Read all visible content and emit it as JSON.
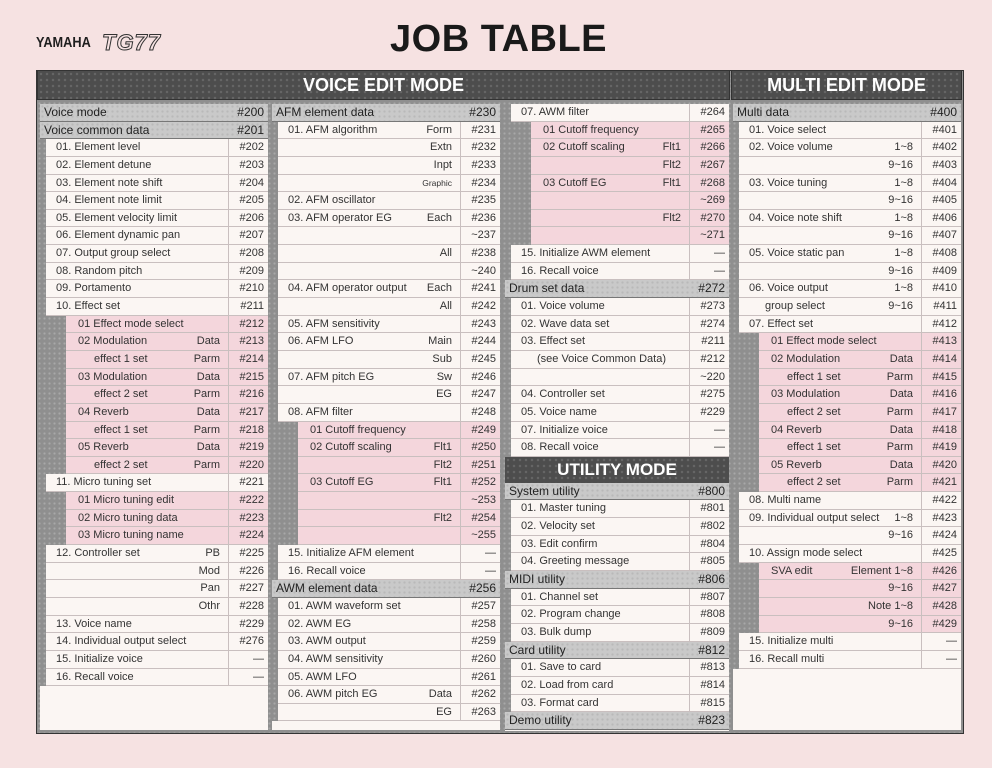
{
  "header": {
    "brand": "YAMAHA",
    "model": "TG77",
    "title": "JOB TABLE"
  },
  "banners": {
    "voice_edit": "VOICE EDIT MODE",
    "multi_edit": "MULTI EDIT MODE",
    "utility": "UTILITY MODE"
  },
  "colors": {
    "frame": "#4d4d4d",
    "header_row": "#c9c9c9",
    "row": "#fbf6f3",
    "sub_row": "#f4d6dc",
    "page": "#f6e2e2"
  },
  "columns": [
    {
      "rows": [
        {
          "t": "Voice mode",
          "c": "#200",
          "k": "hdr"
        },
        {
          "t": "Voice common data",
          "c": "#201",
          "k": "hdr"
        },
        {
          "t": "01. Element level",
          "c": "#202",
          "l": 1
        },
        {
          "t": "02. Element detune",
          "c": "#203",
          "l": 1
        },
        {
          "t": "03. Element note shift",
          "c": "#204",
          "l": 1
        },
        {
          "t": "04. Element note limit",
          "c": "#205",
          "l": 1
        },
        {
          "t": "05. Element velocity limit",
          "c": "#206",
          "l": 1
        },
        {
          "t": "06. Element dynamic pan",
          "c": "#207",
          "l": 1
        },
        {
          "t": "07. Output group select",
          "c": "#208",
          "l": 1
        },
        {
          "t": "08. Random pitch",
          "c": "#209",
          "l": 1
        },
        {
          "t": "09. Portamento",
          "c": "#210",
          "l": 1
        },
        {
          "t": "10. Effect set",
          "c": "#211",
          "l": 1
        },
        {
          "t": "01  Effect mode select",
          "c": "#212",
          "l": 2,
          "k": "pink"
        },
        {
          "t": "02  Modulation",
          "s": "Data",
          "c": "#213",
          "l": 2,
          "k": "pink"
        },
        {
          "t": "effect 1 set",
          "s": "Parm",
          "c": "#214",
          "l": 3,
          "k": "pink"
        },
        {
          "t": "03  Modulation",
          "s": "Data",
          "c": "#215",
          "l": 2,
          "k": "pink"
        },
        {
          "t": "effect 2 set",
          "s": "Parm",
          "c": "#216",
          "l": 3,
          "k": "pink"
        },
        {
          "t": "04  Reverb",
          "s": "Data",
          "c": "#217",
          "l": 2,
          "k": "pink"
        },
        {
          "t": "effect 1 set",
          "s": "Parm",
          "c": "#218",
          "l": 3,
          "k": "pink"
        },
        {
          "t": "05  Reverb",
          "s": "Data",
          "c": "#219",
          "l": 2,
          "k": "pink"
        },
        {
          "t": "effect 2 set",
          "s": "Parm",
          "c": "#220",
          "l": 3,
          "k": "pink"
        },
        {
          "t": "11. Micro tuning set",
          "c": "#221",
          "l": 1
        },
        {
          "t": "01  Micro tuning edit",
          "c": "#222",
          "l": 2,
          "k": "pink"
        },
        {
          "t": "02  Micro tuning data",
          "c": "#223",
          "l": 2,
          "k": "pink"
        },
        {
          "t": "03  Micro tuning name",
          "c": "#224",
          "l": 2,
          "k": "pink"
        },
        {
          "t": "12. Controller set",
          "s": "PB",
          "c": "#225",
          "l": 1
        },
        {
          "t": "",
          "s": "Mod",
          "c": "#226",
          "l": 1
        },
        {
          "t": "",
          "s": "Pan",
          "c": "#227",
          "l": 1
        },
        {
          "t": "",
          "s": "Othr",
          "c": "#228",
          "l": 1
        },
        {
          "t": "13. Voice name",
          "c": "#229",
          "l": 1
        },
        {
          "t": "14. Individual output select",
          "c": "#276",
          "l": 1
        },
        {
          "t": "15. Initialize voice",
          "c": "—",
          "l": 1
        },
        {
          "t": "16. Recall voice",
          "c": "—",
          "l": 1
        }
      ]
    },
    {
      "rows": [
        {
          "t": "AFM element data",
          "c": "#230",
          "k": "hdr"
        },
        {
          "t": "01. AFM algorithm",
          "s": "Form",
          "c": "#231",
          "l": 1
        },
        {
          "t": "",
          "s": "Extn",
          "c": "#232",
          "l": 1
        },
        {
          "t": "",
          "s": "Inpt",
          "c": "#233",
          "l": 1
        },
        {
          "t": "",
          "s": "Graphic",
          "c": "#234",
          "l": 1,
          "k": "tiny"
        },
        {
          "t": "02. AFM oscillator",
          "c": "#235",
          "l": 1
        },
        {
          "t": "03. AFM operator EG",
          "s": "Each",
          "c": "#236",
          "l": 1
        },
        {
          "t": "",
          "s": "",
          "c": "~237",
          "l": 1
        },
        {
          "t": "",
          "s": "All",
          "c": "#238",
          "l": 1
        },
        {
          "t": "",
          "s": "",
          "c": "~240",
          "l": 1
        },
        {
          "t": "04. AFM operator output",
          "s": "Each",
          "c": "#241",
          "l": 1
        },
        {
          "t": "",
          "s": "All",
          "c": "#242",
          "l": 1
        },
        {
          "t": "05. AFM sensitivity",
          "c": "#243",
          "l": 1
        },
        {
          "t": "06. AFM LFO",
          "s": "Main",
          "c": "#244",
          "l": 1
        },
        {
          "t": "",
          "s": "Sub",
          "c": "#245",
          "l": 1
        },
        {
          "t": "07. AFM pitch EG",
          "s": "Sw",
          "c": "#246",
          "l": 1
        },
        {
          "t": "",
          "s": "EG",
          "c": "#247",
          "l": 1
        },
        {
          "t": "08. AFM filter",
          "c": "#248",
          "l": 1
        },
        {
          "t": "01  Cutoff frequency",
          "c": "#249",
          "l": 2,
          "k": "pink"
        },
        {
          "t": "02  Cutoff scaling",
          "s": "Flt1",
          "c": "#250",
          "l": 2,
          "k": "pink"
        },
        {
          "t": "",
          "s": "Flt2",
          "c": "#251",
          "l": 2,
          "k": "pink"
        },
        {
          "t": "03  Cutoff EG",
          "s": "Flt1",
          "c": "#252",
          "l": 2,
          "k": "pink"
        },
        {
          "t": "",
          "s": "",
          "c": "~253",
          "l": 2,
          "k": "pink"
        },
        {
          "t": "",
          "s": "Flt2",
          "c": "#254",
          "l": 2,
          "k": "pink"
        },
        {
          "t": "",
          "s": "",
          "c": "~255",
          "l": 2,
          "k": "pink"
        },
        {
          "t": "15. Initialize AFM element",
          "c": "—",
          "l": 1
        },
        {
          "t": "16. Recall voice",
          "c": "—",
          "l": 1
        },
        {
          "t": "AWM element data",
          "c": "#256",
          "k": "hdr"
        },
        {
          "t": "01. AWM waveform set",
          "c": "#257",
          "l": 1
        },
        {
          "t": "02. AWM EG",
          "c": "#258",
          "l": 1
        },
        {
          "t": "03. AWM output",
          "c": "#259",
          "l": 1
        },
        {
          "t": "04. AWM sensitivity",
          "c": "#260",
          "l": 1
        },
        {
          "t": "05. AWM LFO",
          "c": "#261",
          "l": 1
        },
        {
          "t": "06. AWM pitch EG",
          "s": "Data",
          "c": "#262",
          "l": 1
        },
        {
          "t": "",
          "s": "EG",
          "c": "#263",
          "l": 1
        }
      ]
    },
    {
      "rows": [
        {
          "t": "07. AWM filter",
          "c": "#264",
          "l": 1
        },
        {
          "t": "01  Cutoff frequency",
          "c": "#265",
          "l": 2,
          "k": "pink"
        },
        {
          "t": "02  Cutoff scaling",
          "s": "Flt1",
          "c": "#266",
          "l": 2,
          "k": "pink"
        },
        {
          "t": "",
          "s": "Flt2",
          "c": "#267",
          "l": 2,
          "k": "pink"
        },
        {
          "t": "03  Cutoff EG",
          "s": "Flt1",
          "c": "#268",
          "l": 2,
          "k": "pink"
        },
        {
          "t": "",
          "s": "",
          "c": "~269",
          "l": 2,
          "k": "pink"
        },
        {
          "t": "",
          "s": "Flt2",
          "c": "#270",
          "l": 2,
          "k": "pink"
        },
        {
          "t": "",
          "s": "",
          "c": "~271",
          "l": 2,
          "k": "pink"
        },
        {
          "t": "15. Initialize AWM element",
          "c": "—",
          "l": 1
        },
        {
          "t": "16. Recall voice",
          "c": "—",
          "l": 1
        },
        {
          "t": "Drum set data",
          "c": "#272",
          "k": "hdr"
        },
        {
          "t": "01. Voice volume",
          "c": "#273",
          "l": 1
        },
        {
          "t": "02. Wave data set",
          "c": "#274",
          "l": 1
        },
        {
          "t": "03. Effect set",
          "c": "#211",
          "l": 1
        },
        {
          "t": "(see Voice Common Data)",
          "c": "#212",
          "l": 4
        },
        {
          "t": "",
          "c": "~220",
          "l": 1
        },
        {
          "t": "04. Controller set",
          "c": "#275",
          "l": 1
        },
        {
          "t": "05. Voice name",
          "c": "#229",
          "l": 1
        },
        {
          "t": "07. Initialize voice",
          "c": "—",
          "l": 1
        },
        {
          "t": "08. Recall voice",
          "c": "—",
          "l": 1
        },
        {
          "k": "banner"
        },
        {
          "t": "System utility",
          "c": "#800",
          "k": "hdr"
        },
        {
          "t": "01. Master tuning",
          "c": "#801",
          "l": 1
        },
        {
          "t": "02. Velocity set",
          "c": "#802",
          "l": 1
        },
        {
          "t": "03. Edit confirm",
          "c": "#804",
          "l": 1
        },
        {
          "t": "04. Greeting message",
          "c": "#805",
          "l": 1
        },
        {
          "t": "MIDI utility",
          "c": "#806",
          "k": "hdr"
        },
        {
          "t": "01. Channel set",
          "c": "#807",
          "l": 1
        },
        {
          "t": "02. Program change",
          "c": "#808",
          "l": 1
        },
        {
          "t": "03. Bulk dump",
          "c": "#809",
          "l": 1
        },
        {
          "t": "Card utility",
          "c": "#812",
          "k": "hdr"
        },
        {
          "t": "01. Save to card",
          "c": "#813",
          "l": 1
        },
        {
          "t": "02. Load from card",
          "c": "#814",
          "l": 1
        },
        {
          "t": "03. Format card",
          "c": "#815",
          "l": 1
        },
        {
          "t": "Demo utility",
          "c": "#823",
          "k": "hdr"
        }
      ]
    },
    {
      "rows": [
        {
          "t": "Multi data",
          "c": "#400",
          "k": "hdr"
        },
        {
          "t": "01. Voice select",
          "c": "#401",
          "l": 1
        },
        {
          "t": "02. Voice volume",
          "s": "1~8",
          "c": "#402",
          "l": 1
        },
        {
          "t": "",
          "s": "9~16",
          "c": "#403",
          "l": 1
        },
        {
          "t": "03. Voice tuning",
          "s": "1~8",
          "c": "#404",
          "l": 1
        },
        {
          "t": "",
          "s": "9~16",
          "c": "#405",
          "l": 1
        },
        {
          "t": "04. Voice note shift",
          "s": "1~8",
          "c": "#406",
          "l": 1
        },
        {
          "t": "",
          "s": "9~16",
          "c": "#407",
          "l": 1
        },
        {
          "t": "05. Voice static pan",
          "s": "1~8",
          "c": "#408",
          "l": 1
        },
        {
          "t": "",
          "s": "9~16",
          "c": "#409",
          "l": 1
        },
        {
          "t": "06. Voice output",
          "s": "1~8",
          "c": "#410",
          "l": 1
        },
        {
          "t": "group select",
          "s": "9~16",
          "c": "#411",
          "l": 4
        },
        {
          "t": "07. Effect set",
          "c": "#412",
          "l": 1
        },
        {
          "t": "01  Effect mode select",
          "c": "#413",
          "l": 2,
          "k": "pink"
        },
        {
          "t": "02  Modulation",
          "s": "Data",
          "c": "#414",
          "l": 2,
          "k": "pink"
        },
        {
          "t": "effect 1 set",
          "s": "Parm",
          "c": "#415",
          "l": 3,
          "k": "pink"
        },
        {
          "t": "03  Modulation",
          "s": "Data",
          "c": "#416",
          "l": 2,
          "k": "pink"
        },
        {
          "t": "effect 2 set",
          "s": "Parm",
          "c": "#417",
          "l": 3,
          "k": "pink"
        },
        {
          "t": "04  Reverb",
          "s": "Data",
          "c": "#418",
          "l": 2,
          "k": "pink"
        },
        {
          "t": "effect 1 set",
          "s": "Parm",
          "c": "#419",
          "l": 3,
          "k": "pink"
        },
        {
          "t": "05  Reverb",
          "s": "Data",
          "c": "#420",
          "l": 2,
          "k": "pink"
        },
        {
          "t": "effect 2 set",
          "s": "Parm",
          "c": "#421",
          "l": 3,
          "k": "pink"
        },
        {
          "t": "08. Multi name",
          "c": "#422",
          "l": 1
        },
        {
          "t": "09. Individual output select",
          "s": "1~8",
          "c": "#423",
          "l": 1
        },
        {
          "t": "",
          "s": "9~16",
          "c": "#424",
          "l": 1
        },
        {
          "t": "10. Assign mode select",
          "c": "#425",
          "l": 1
        },
        {
          "t": "SVA edit",
          "s": "Element   1~8",
          "c": "#426",
          "l": 2,
          "k": "pink"
        },
        {
          "t": "",
          "s": "9~16",
          "c": "#427",
          "l": 2,
          "k": "pink"
        },
        {
          "t": "",
          "s": "Note   1~8",
          "c": "#428",
          "l": 2,
          "k": "pink"
        },
        {
          "t": "",
          "s": "9~16",
          "c": "#429",
          "l": 2,
          "k": "pink"
        },
        {
          "t": "15. Initialize multi",
          "c": "—",
          "l": 1
        },
        {
          "t": "16. Recall multi",
          "c": "—",
          "l": 1
        }
      ]
    }
  ]
}
